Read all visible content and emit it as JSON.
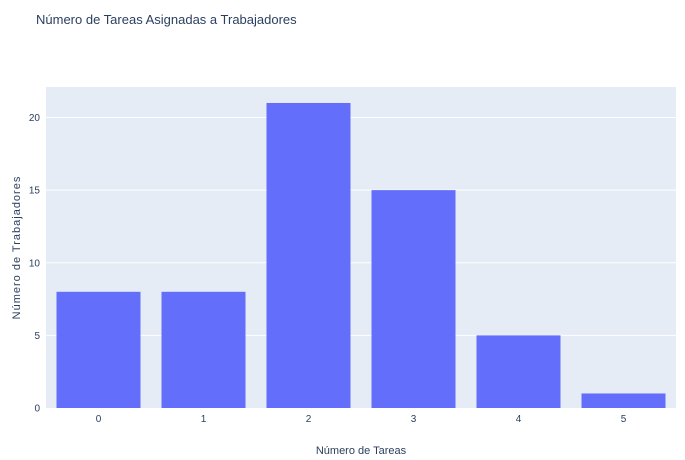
{
  "chart_data": {
    "type": "bar",
    "title": "Número de Tareas Asignadas a Trabajadores",
    "xlabel": "Número de Tareas",
    "ylabel": "Número de Trabajadores",
    "categories": [
      "0",
      "1",
      "2",
      "3",
      "4",
      "5"
    ],
    "values": [
      8,
      8,
      21,
      15,
      5,
      1
    ],
    "ylim": [
      0,
      22.1
    ],
    "yticks": [
      0,
      5,
      10,
      15,
      20
    ],
    "grid": true,
    "colors": {
      "bar": "#636efa",
      "plot_background": "#e5ecf6",
      "grid": "#ffffff",
      "text": "#2a3f5f"
    }
  }
}
